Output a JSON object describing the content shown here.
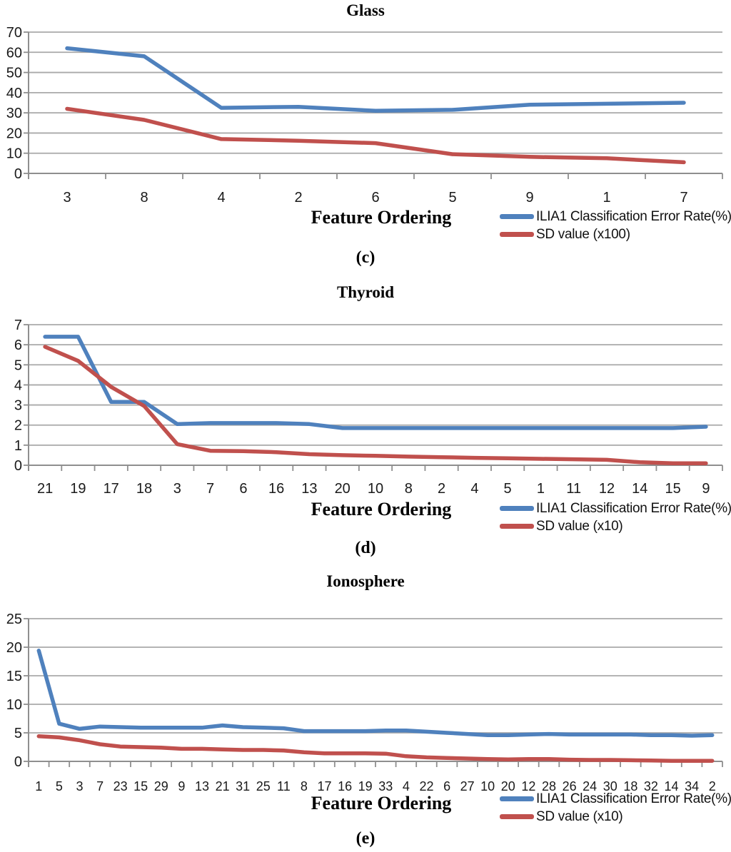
{
  "styles": {
    "series_blue": "#4F81BD",
    "series_red": "#C0504D",
    "gridline": "#A9A9A9",
    "axis": "#8F8F8F",
    "text": "#1a1a1a"
  },
  "chart_data": [
    {
      "id": "glass",
      "type": "line",
      "title": "Glass",
      "caption": "(c)",
      "xlabel": "Feature Ordering",
      "grid": true,
      "legend_position": "bottom-right",
      "ylim": [
        0,
        70
      ],
      "ytick_step": 10,
      "categories": [
        "3",
        "8",
        "4",
        "2",
        "6",
        "5",
        "9",
        "1",
        "7"
      ],
      "series": [
        {
          "name": "ILIA1 Classification Error Rate(%)",
          "color": "#4F81BD",
          "values": [
            62,
            58,
            32.5,
            33,
            31,
            31.5,
            34,
            34.5,
            35
          ]
        },
        {
          "name": "SD value (x100)",
          "color": "#C0504D",
          "values": [
            32,
            26.5,
            17,
            16.2,
            15,
            9.5,
            8.2,
            7.5,
            5.5
          ]
        }
      ]
    },
    {
      "id": "thyroid",
      "type": "line",
      "title": "Thyroid",
      "caption": "(d)",
      "xlabel": "Feature Ordering",
      "grid": true,
      "legend_position": "bottom-right",
      "ylim": [
        0,
        7
      ],
      "ytick_step": 1,
      "categories": [
        "21",
        "19",
        "17",
        "18",
        "3",
        "7",
        "6",
        "16",
        "13",
        "20",
        "10",
        "8",
        "2",
        "4",
        "5",
        "1",
        "11",
        "12",
        "14",
        "15",
        "9"
      ],
      "series": [
        {
          "name": "ILIA1 Classification Error Rate(%)",
          "color": "#4F81BD",
          "values": [
            6.4,
            6.4,
            3.15,
            3.15,
            2.05,
            2.1,
            2.1,
            2.1,
            2.05,
            1.85,
            1.85,
            1.85,
            1.85,
            1.85,
            1.85,
            1.85,
            1.85,
            1.85,
            1.85,
            1.85,
            1.92
          ]
        },
        {
          "name": "SD value (x10)",
          "color": "#C0504D",
          "values": [
            5.9,
            5.2,
            3.9,
            2.95,
            1.05,
            0.72,
            0.7,
            0.65,
            0.55,
            0.5,
            0.47,
            0.43,
            0.4,
            0.37,
            0.35,
            0.32,
            0.3,
            0.27,
            0.15,
            0.1,
            0.1
          ]
        }
      ]
    },
    {
      "id": "ionosphere",
      "type": "line",
      "title": "Ionosphere",
      "caption": "(e)",
      "xlabel": "Feature Ordering",
      "grid": true,
      "legend_position": "bottom-right",
      "ylim": [
        0,
        25
      ],
      "ytick_step": 5,
      "categories": [
        "1",
        "5",
        "3",
        "7",
        "23",
        "15",
        "29",
        "9",
        "13",
        "21",
        "31",
        "25",
        "11",
        "8",
        "17",
        "16",
        "19",
        "33",
        "4",
        "22",
        "6",
        "27",
        "10",
        "20",
        "12",
        "28",
        "26",
        "24",
        "30",
        "18",
        "32",
        "14",
        "34",
        "2"
      ],
      "series": [
        {
          "name": "ILIA1 Classification Error Rate(%)",
          "color": "#4F81BD",
          "values": [
            19.4,
            6.6,
            5.7,
            6.1,
            6.0,
            5.9,
            5.9,
            5.9,
            5.9,
            6.3,
            6.0,
            5.9,
            5.8,
            5.3,
            5.3,
            5.3,
            5.3,
            5.4,
            5.4,
            5.2,
            5.0,
            4.8,
            4.6,
            4.6,
            4.7,
            4.8,
            4.7,
            4.7,
            4.7,
            4.7,
            4.6,
            4.6,
            4.5,
            4.6
          ]
        },
        {
          "name": "SD value (x10)",
          "color": "#C0504D",
          "values": [
            4.4,
            4.2,
            3.7,
            3.0,
            2.6,
            2.5,
            2.4,
            2.2,
            2.2,
            2.1,
            2.0,
            2.0,
            1.9,
            1.6,
            1.4,
            1.4,
            1.4,
            1.35,
            0.9,
            0.7,
            0.6,
            0.5,
            0.4,
            0.35,
            0.4,
            0.4,
            0.3,
            0.25,
            0.25,
            0.2,
            0.15,
            0.1,
            0.1,
            0.1
          ]
        }
      ]
    }
  ]
}
